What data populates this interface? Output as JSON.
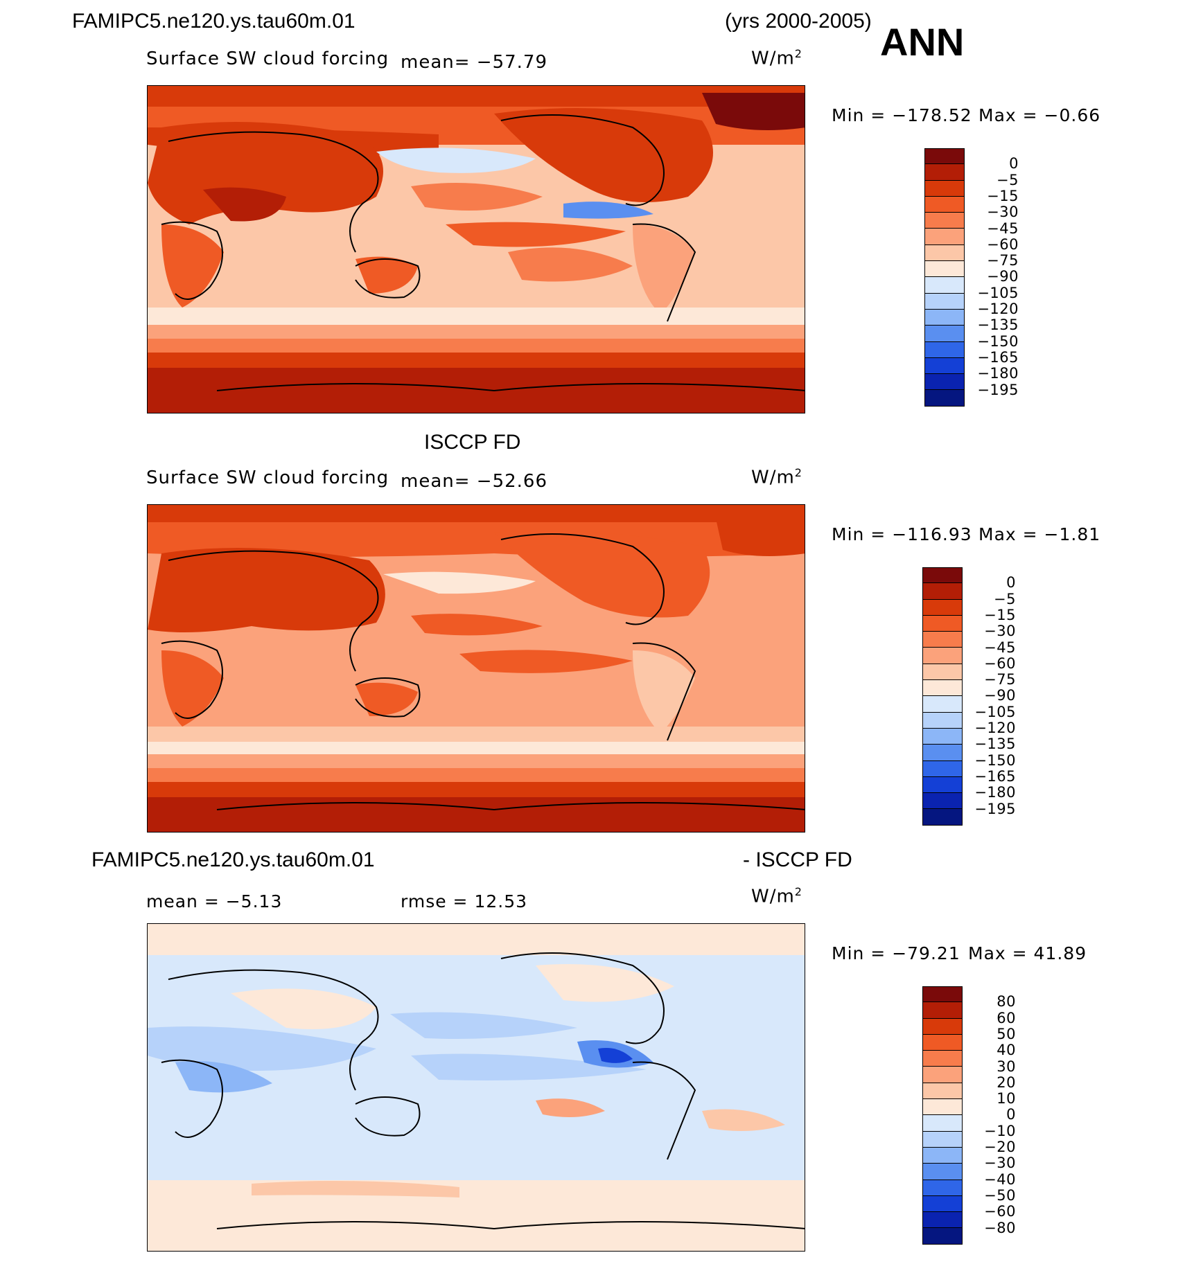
{
  "header": {
    "case_name": "FAMIPC5.ne120.ys.tau60m.01",
    "years": "(yrs 2000-2005)",
    "season": "ANN"
  },
  "panels": [
    {
      "id": "model",
      "title": "",
      "variable": "Surface SW cloud forcing",
      "mean_text": "mean=  −57.79",
      "units": "W/m",
      "units_sup": "2",
      "min_text": "Min  =  −178.52",
      "max_text": "Max  =   −0.66"
    },
    {
      "id": "obs",
      "title": "ISCCP FD",
      "variable": "Surface SW cloud forcing",
      "mean_text": "mean=  −52.66",
      "units": "W/m",
      "units_sup": "2",
      "min_text": "Min  =  −116.93",
      "max_text": "Max  =   −1.81"
    },
    {
      "id": "diff",
      "title_left": "FAMIPC5.ne120.ys.tau60m.01",
      "title_right": "- ISCCP FD",
      "mean_text": "mean  =    −5.13",
      "rmse_text": "rmse  =    12.53",
      "units": "W/m",
      "units_sup": "2",
      "min_text": "Min  =  −79.21",
      "max_text": "Max  =    41.89"
    }
  ],
  "colorbar_abs": {
    "levels": [
      "0",
      "−5",
      "−15",
      "−30",
      "−45",
      "−60",
      "−75",
      "−90",
      "−105",
      "−120",
      "−135",
      "−150",
      "−165",
      "−180",
      "−195"
    ],
    "colors": [
      "#7a0a0a",
      "#b31e06",
      "#d83a0a",
      "#ef5a25",
      "#f77c4c",
      "#fba27b",
      "#fcc7a8",
      "#fde8d8",
      "#d8e8fb",
      "#b6d2fa",
      "#8cb6f7",
      "#5a8ff0",
      "#2f66e8",
      "#1440d6",
      "#0a23b0",
      "#051680"
    ]
  },
  "colorbar_diff": {
    "levels": [
      "80",
      "60",
      "50",
      "40",
      "30",
      "20",
      "10",
      "0",
      "−10",
      "−20",
      "−30",
      "−40",
      "−50",
      "−60",
      "−80"
    ],
    "colors": [
      "#7a0a0a",
      "#b31e06",
      "#d83a0a",
      "#ef5a25",
      "#f77c4c",
      "#fba27b",
      "#fcc7a8",
      "#fde8d8",
      "#d8e8fb",
      "#b6d2fa",
      "#8cb6f7",
      "#5a8ff0",
      "#2f66e8",
      "#1440d6",
      "#0a23b0",
      "#051680"
    ]
  }
}
